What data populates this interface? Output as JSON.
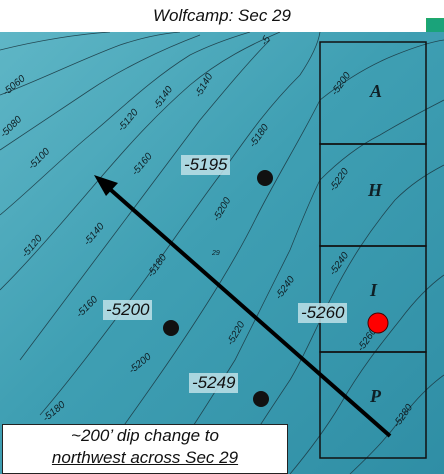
{
  "title": "Wolfcamp: Sec 29",
  "contour_labels": [
    "-5060",
    "-5080",
    "-5100",
    "-5120",
    "-5140",
    "-5140",
    "-5120",
    "-5140",
    "-5160",
    "-5180",
    "-5180",
    "-5160",
    "-5200",
    "-5200",
    "-5180",
    "-5220",
    "-5200",
    "-5240",
    "-5220",
    "-5240",
    "-5260",
    "-5280",
    "-5"
  ],
  "section_number": "29",
  "tracts": [
    "A",
    "H",
    "I",
    "P"
  ],
  "wells": [
    {
      "label": "-5195",
      "color": "#111111"
    },
    {
      "label": "-5200",
      "color": "#111111"
    },
    {
      "label": "-5260",
      "color": "#ff0000"
    },
    {
      "label": "-5249",
      "color": "#111111"
    }
  ],
  "callout": {
    "line1": "~200’ dip change to",
    "line2": "northwest across Sec 29"
  },
  "colors": {
    "map_fill": "#3f9fb3",
    "contour": "#1d3c46",
    "dip_arrow": "#000000",
    "highlight_well": "#ff0000"
  }
}
